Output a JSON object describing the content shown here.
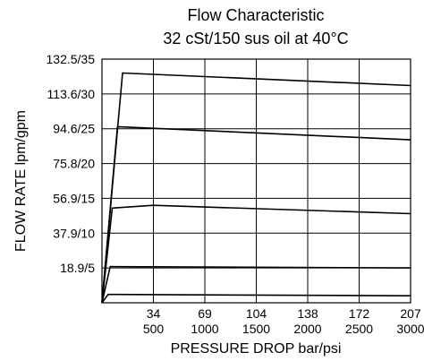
{
  "chart_data": {
    "type": "line",
    "title_line1": "Flow Characteristic",
    "title_line2": "32 cSt/150 sus oil at 40°C",
    "xlabel": "PRESSURE DROP bar/psi",
    "ylabel": "FLOW RATE lpm/gpm",
    "x_ticks": [
      {
        "bar": "34",
        "psi": "500",
        "value": 500
      },
      {
        "bar": "69",
        "psi": "1000",
        "value": 1000
      },
      {
        "bar": "104",
        "psi": "1500",
        "value": 1500
      },
      {
        "bar": "138",
        "psi": "2000",
        "value": 2000
      },
      {
        "bar": "172",
        "psi": "2500",
        "value": 2500
      },
      {
        "bar": "207",
        "psi": "3000",
        "value": 3000
      }
    ],
    "y_ticks": [
      {
        "label": "18.9/5",
        "value": 5
      },
      {
        "label": "37.9/10",
        "value": 10
      },
      {
        "label": "56.9/15",
        "value": 15
      },
      {
        "label": "75.8/20",
        "value": 20
      },
      {
        "label": "94.6/25",
        "value": 25
      },
      {
        "label": "113.6/30",
        "value": 30
      },
      {
        "label": "132.5/35",
        "value": 35
      }
    ],
    "xlim": [
      0,
      3000
    ],
    "ylim": [
      0,
      35
    ],
    "grid": true,
    "series": [
      {
        "values": [
          [
            0,
            0
          ],
          [
            60,
            1.2
          ],
          [
            3000,
            1.0
          ]
        ]
      },
      {
        "values": [
          [
            0,
            0
          ],
          [
            80,
            5.2
          ],
          [
            3000,
            5.0
          ]
        ]
      },
      {
        "values": [
          [
            0,
            0
          ],
          [
            100,
            13.6
          ],
          [
            500,
            14.0
          ],
          [
            3000,
            12.8
          ]
        ]
      },
      {
        "values": [
          [
            0,
            0
          ],
          [
            150,
            25.3
          ],
          [
            3000,
            23.4
          ]
        ]
      },
      {
        "values": [
          [
            0,
            0
          ],
          [
            200,
            33.0
          ],
          [
            3000,
            31.2
          ]
        ]
      }
    ]
  }
}
